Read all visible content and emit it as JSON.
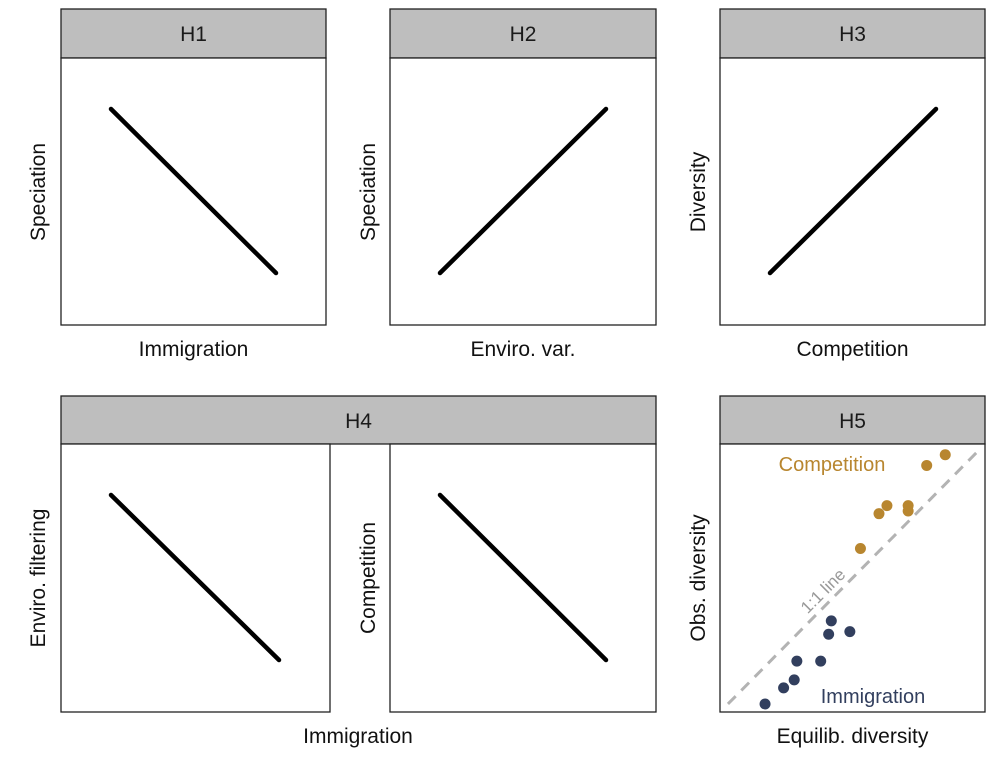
{
  "chart_data": [
    {
      "type": "line",
      "title": "H1",
      "xlabel": "Immigration",
      "ylabel": "Speciation",
      "series": [
        {
          "x": [
            0,
            1
          ],
          "values": [
            1,
            0
          ]
        }
      ]
    },
    {
      "type": "line",
      "title": "H2",
      "xlabel": "Enviro. var.",
      "ylabel": "Speciation",
      "series": [
        {
          "x": [
            0,
            1
          ],
          "values": [
            0,
            1
          ]
        }
      ]
    },
    {
      "type": "line",
      "title": "H3",
      "xlabel": "Competition",
      "ylabel": "Diversity",
      "series": [
        {
          "x": [
            0,
            1
          ],
          "values": [
            0,
            1
          ]
        }
      ]
    },
    {
      "type": "line",
      "title": "H4",
      "xlabel": "Immigration",
      "panels": [
        {
          "ylabel": "Enviro. filtering",
          "series": [
            {
              "x": [
                0,
                1
              ],
              "values": [
                1,
                0
              ]
            }
          ]
        },
        {
          "ylabel": "Competition",
          "series": [
            {
              "x": [
                0,
                1
              ],
              "values": [
                1,
                0
              ]
            }
          ]
        }
      ]
    },
    {
      "type": "scatter",
      "title": "H5",
      "xlabel": "Equilib. diversity",
      "ylabel": "Obs. diversity",
      "xlim": [
        0,
        1
      ],
      "ylim": [
        0,
        1
      ],
      "reference_line": {
        "label": "1:1 line",
        "color": "#b3b3b3",
        "style": "dashed"
      },
      "series": [
        {
          "name": "Competition",
          "color": "#b8862f",
          "x": [
            0.53,
            0.6,
            0.63,
            0.71,
            0.71,
            0.78,
            0.85
          ],
          "y": [
            0.61,
            0.74,
            0.77,
            0.75,
            0.77,
            0.92,
            0.96
          ]
        },
        {
          "name": "Immigration",
          "color": "#323f5e",
          "x": [
            0.17,
            0.24,
            0.28,
            0.29,
            0.38,
            0.41,
            0.42,
            0.49
          ],
          "y": [
            0.03,
            0.09,
            0.12,
            0.19,
            0.19,
            0.29,
            0.34,
            0.3
          ]
        }
      ]
    }
  ]
}
